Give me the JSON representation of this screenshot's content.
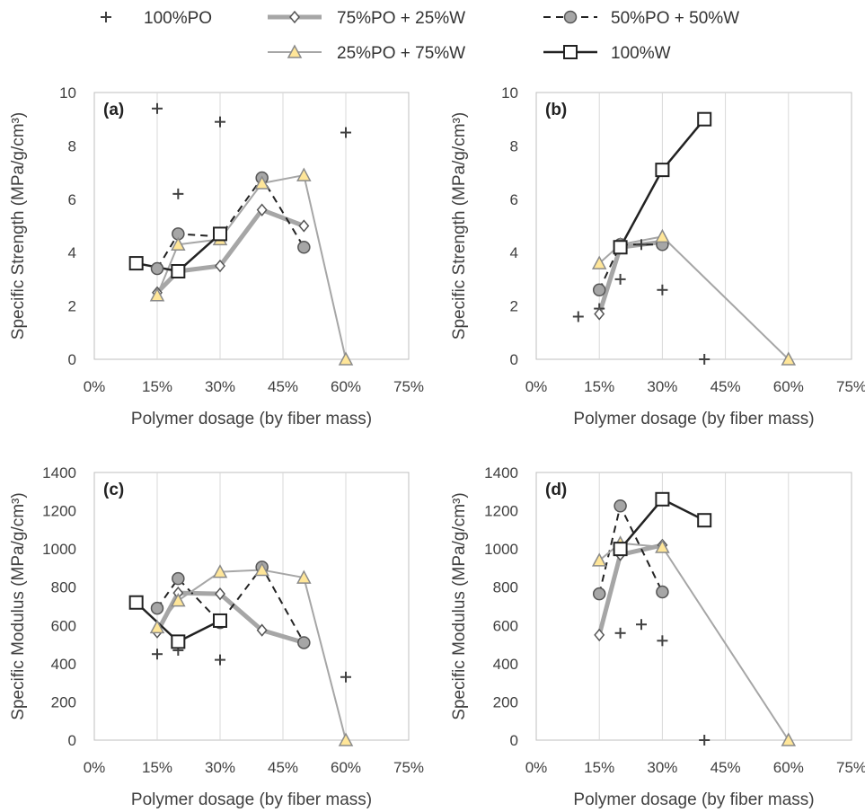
{
  "legend": [
    {
      "key": "po100",
      "label": "100%PO"
    },
    {
      "key": "po75",
      "label": "75%PO + 25%W"
    },
    {
      "key": "po50",
      "label": "50%PO + 50%W"
    },
    {
      "key": "po25",
      "label": "25%PO + 75%W"
    },
    {
      "key": "w100",
      "label": "100%W"
    }
  ],
  "styles": {
    "po100": {
      "line": "none",
      "color": "#404040",
      "width": 0,
      "dash": "",
      "marker": "plus",
      "fill": "none"
    },
    "po75": {
      "line": "#a6a6a6",
      "color": "#a6a6a6",
      "width": 5,
      "dash": "",
      "marker": "diamond",
      "fill": "#ffffff"
    },
    "po50": {
      "line": "#222222",
      "color": "#222222",
      "width": 2,
      "dash": "8,6",
      "marker": "circle",
      "fill": "#a6a6a6"
    },
    "po25": {
      "line": "#a6a6a6",
      "color": "#a6a6a6",
      "width": 2,
      "dash": "",
      "marker": "triangle",
      "fill": "#ffe699"
    },
    "w100": {
      "line": "#222222",
      "color": "#222222",
      "width": 2.5,
      "dash": "",
      "marker": "square",
      "fill": "#ffffff"
    }
  },
  "chart_data": [
    {
      "panel": "(a)",
      "type": "line",
      "xlabel": "Polymer dosage (by fiber mass)",
      "ylabel": "Specific Strength (MPa/g/cm³)",
      "xlim": [
        0,
        0.75
      ],
      "xticks": [
        0,
        0.15,
        0.3,
        0.45,
        0.6,
        0.75
      ],
      "xtick_labels": [
        "0%",
        "15%",
        "30%",
        "45%",
        "60%",
        "75%"
      ],
      "ylim": [
        0,
        10
      ],
      "yticks": [
        0,
        2,
        4,
        6,
        8,
        10
      ],
      "ytick_labels": [
        "0",
        "2",
        "4",
        "6",
        "8",
        "10"
      ],
      "series": [
        {
          "key": "po100",
          "name": "100%PO",
          "x": [
            0.15,
            0.2,
            0.3,
            0.6
          ],
          "y": [
            9.4,
            6.2,
            8.9,
            8.5
          ]
        },
        {
          "key": "po75",
          "name": "75%PO + 25%W",
          "x": [
            0.15,
            0.2,
            0.3,
            0.4,
            0.5
          ],
          "y": [
            2.5,
            3.3,
            3.5,
            5.6,
            5.0
          ]
        },
        {
          "key": "po50",
          "name": "50%PO + 50%W",
          "x": [
            0.15,
            0.2,
            0.3,
            0.4,
            0.5
          ],
          "y": [
            3.4,
            4.7,
            4.6,
            6.8,
            4.2
          ]
        },
        {
          "key": "po25",
          "name": "25%PO + 75%W",
          "x": [
            0.15,
            0.2,
            0.3,
            0.4,
            0.5,
            0.6
          ],
          "y": [
            2.4,
            4.3,
            4.5,
            6.6,
            6.9,
            0.0
          ]
        },
        {
          "key": "w100",
          "name": "100%W",
          "x": [
            0.1,
            0.2,
            0.3
          ],
          "y": [
            3.6,
            3.3,
            4.7
          ]
        }
      ]
    },
    {
      "panel": "(b)",
      "type": "line",
      "xlabel": "Polymer dosage (by fiber mass)",
      "ylabel": "Specific Strength (MPa/g/cm³)",
      "xlim": [
        0,
        0.75
      ],
      "xticks": [
        0,
        0.15,
        0.3,
        0.45,
        0.6,
        0.75
      ],
      "xtick_labels": [
        "0%",
        "15%",
        "30%",
        "45%",
        "60%",
        "75%"
      ],
      "ylim": [
        0,
        10
      ],
      "yticks": [
        0,
        2,
        4,
        6,
        8,
        10
      ],
      "ytick_labels": [
        "0",
        "2",
        "4",
        "6",
        "8",
        "10"
      ],
      "series": [
        {
          "key": "po100",
          "name": "100%PO",
          "x": [
            0.1,
            0.15,
            0.2,
            0.25,
            0.3,
            0.4
          ],
          "y": [
            1.6,
            1.9,
            3.0,
            4.3,
            2.6,
            0.0
          ]
        },
        {
          "key": "po75",
          "name": "75%PO + 25%W",
          "x": [
            0.15,
            0.2,
            0.3
          ],
          "y": [
            1.7,
            4.2,
            4.4
          ]
        },
        {
          "key": "po50",
          "name": "50%PO + 50%W",
          "x": [
            0.15,
            0.2,
            0.3
          ],
          "y": [
            2.6,
            4.3,
            4.3
          ]
        },
        {
          "key": "po25",
          "name": "25%PO + 75%W",
          "x": [
            0.15,
            0.2,
            0.3,
            0.6
          ],
          "y": [
            3.6,
            4.3,
            4.6,
            0.0
          ]
        },
        {
          "key": "w100",
          "name": "100%W",
          "x": [
            0.2,
            0.3,
            0.4
          ],
          "y": [
            4.2,
            7.1,
            9.0
          ]
        }
      ]
    },
    {
      "panel": "(c)",
      "type": "line",
      "xlabel": "Polymer dosage (by fiber mass)",
      "ylabel": "Specific Modulus (MPa/g/cm³)",
      "xlim": [
        0,
        0.75
      ],
      "xticks": [
        0,
        0.15,
        0.3,
        0.45,
        0.6,
        0.75
      ],
      "xtick_labels": [
        "0%",
        "15%",
        "30%",
        "45%",
        "60%",
        "75%"
      ],
      "ylim": [
        0,
        1400
      ],
      "yticks": [
        0,
        200,
        400,
        600,
        800,
        1000,
        1200,
        1400
      ],
      "ytick_labels": [
        "0",
        "200",
        "400",
        "600",
        "800",
        "1000",
        "1200",
        "1400"
      ],
      "series": [
        {
          "key": "po100",
          "name": "100%PO",
          "x": [
            0.15,
            0.2,
            0.3,
            0.6
          ],
          "y": [
            450,
            470,
            420,
            330
          ]
        },
        {
          "key": "po75",
          "name": "75%PO + 25%W",
          "x": [
            0.15,
            0.2,
            0.3,
            0.4,
            0.5
          ],
          "y": [
            565,
            770,
            765,
            575,
            510
          ]
        },
        {
          "key": "po50",
          "name": "50%PO + 50%W",
          "x": [
            0.15,
            0.2,
            0.3,
            0.4,
            0.5
          ],
          "y": [
            690,
            845,
            615,
            905,
            510
          ]
        },
        {
          "key": "po25",
          "name": "25%PO + 75%W",
          "x": [
            0.15,
            0.2,
            0.3,
            0.4,
            0.5,
            0.6
          ],
          "y": [
            590,
            730,
            880,
            890,
            850,
            0
          ]
        },
        {
          "key": "w100",
          "name": "100%W",
          "x": [
            0.1,
            0.2,
            0.3
          ],
          "y": [
            720,
            515,
            625
          ]
        }
      ]
    },
    {
      "panel": "(d)",
      "type": "line",
      "xlabel": "Polymer dosage (by fiber mass)",
      "ylabel": "Specific Modulus (MPa/g/cm³)",
      "xlim": [
        0,
        0.75
      ],
      "xticks": [
        0,
        0.15,
        0.3,
        0.45,
        0.6,
        0.75
      ],
      "xtick_labels": [
        "0%",
        "15%",
        "30%",
        "45%",
        "60%",
        "75%"
      ],
      "ylim": [
        0,
        1400
      ],
      "yticks": [
        0,
        200,
        400,
        600,
        800,
        1000,
        1200,
        1400
      ],
      "ytick_labels": [
        "0",
        "200",
        "400",
        "600",
        "800",
        "1000",
        "1200",
        "1400"
      ],
      "series": [
        {
          "key": "po100",
          "name": "100%PO",
          "x": [
            0.2,
            0.25,
            0.3,
            0.4
          ],
          "y": [
            560,
            605,
            520,
            0
          ]
        },
        {
          "key": "po75",
          "name": "75%PO + 25%W",
          "x": [
            0.15,
            0.2,
            0.3
          ],
          "y": [
            550,
            970,
            1020
          ]
        },
        {
          "key": "po50",
          "name": "50%PO + 50%W",
          "x": [
            0.15,
            0.2,
            0.3
          ],
          "y": [
            765,
            1225,
            775
          ]
        },
        {
          "key": "po25",
          "name": "25%PO + 75%W",
          "x": [
            0.15,
            0.2,
            0.3,
            0.6
          ],
          "y": [
            940,
            1030,
            1010,
            0
          ]
        },
        {
          "key": "w100",
          "name": "100%W",
          "x": [
            0.2,
            0.3,
            0.4
          ],
          "y": [
            1000,
            1260,
            1150
          ]
        }
      ]
    }
  ]
}
